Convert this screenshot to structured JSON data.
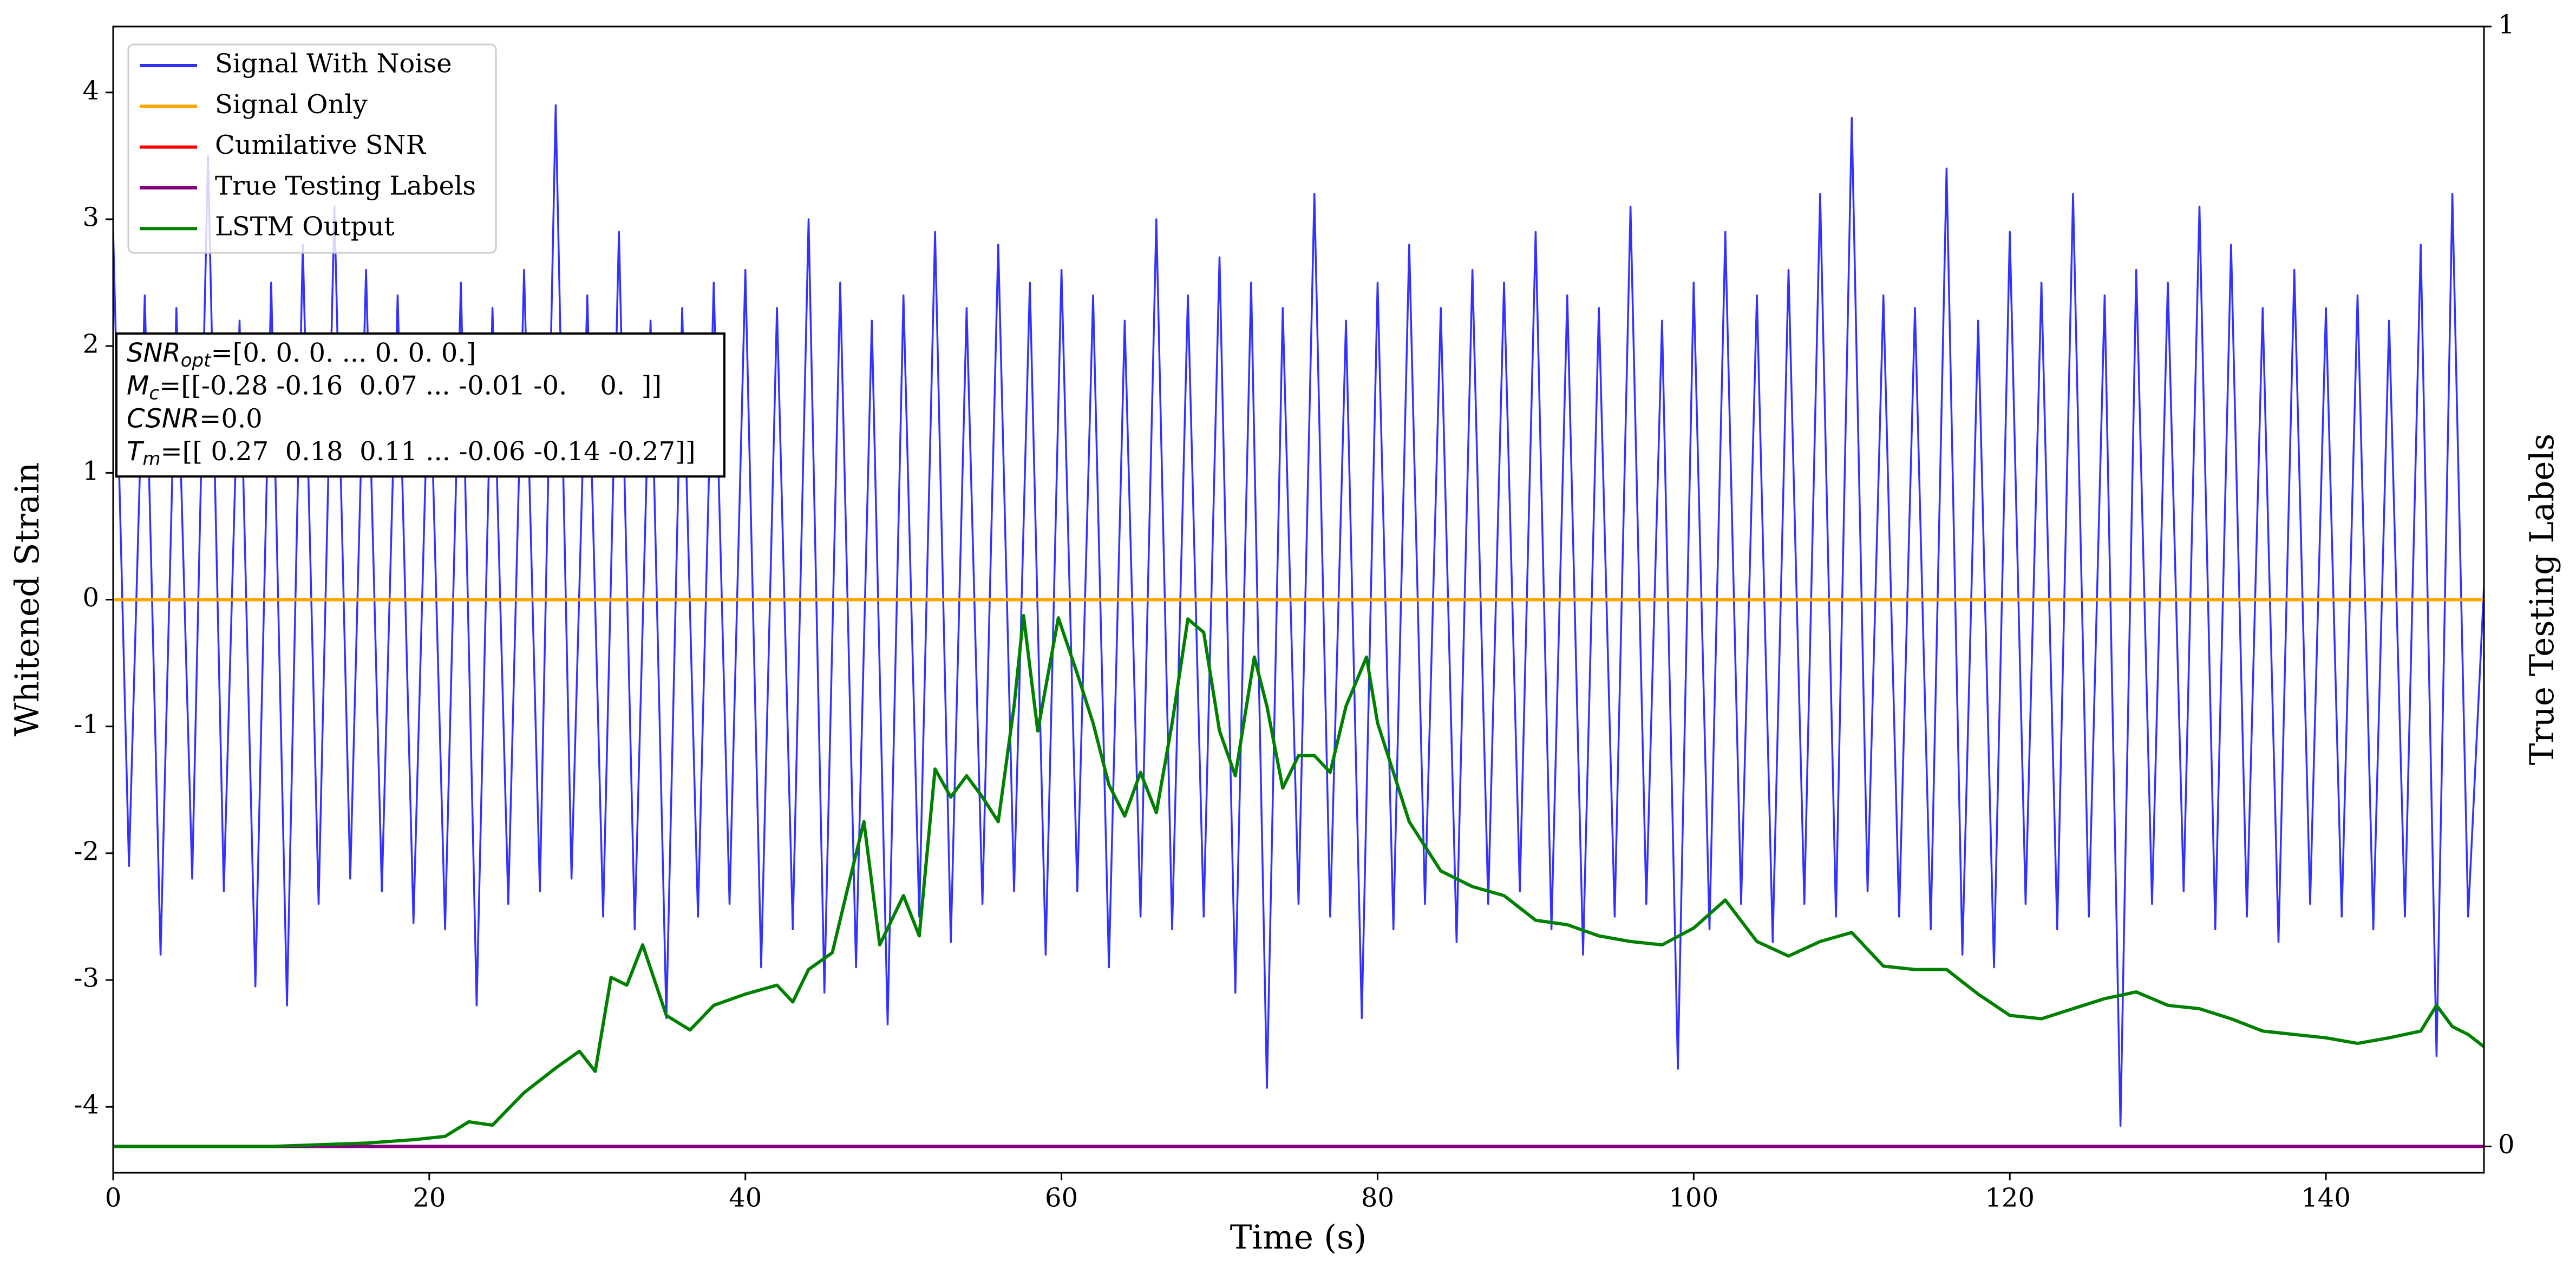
{
  "chart_data": {
    "type": "line",
    "xlabel": "Time (s)",
    "ylabel": "Whitened Strain",
    "y2label": "True Testing Labels",
    "xlim": [
      0,
      150
    ],
    "ylim": [
      -4.52,
      4.52
    ],
    "y2lim": [
      -0.0235,
      1
    ],
    "xticks": [
      0,
      20,
      40,
      60,
      80,
      100,
      120,
      140
    ],
    "yticks": [
      -4,
      -3,
      -2,
      -1,
      0,
      1,
      2,
      3,
      4
    ],
    "y2ticks": [
      0,
      1
    ],
    "legend": "upper left",
    "series": [
      {
        "name": "Signal With Noise",
        "color": "#3232ff",
        "x": [
          0,
          1,
          2,
          3,
          4,
          5,
          6,
          7,
          8,
          9,
          10,
          11,
          12,
          13,
          14,
          15,
          16,
          17,
          18,
          19,
          20,
          21,
          22,
          23,
          24,
          25,
          26,
          27,
          28,
          29,
          30,
          31,
          32,
          33,
          34,
          35,
          36,
          37,
          38,
          39,
          40,
          41,
          42,
          43,
          44,
          45,
          46,
          47,
          48,
          49,
          50,
          51,
          52,
          53,
          54,
          55,
          56,
          57,
          58,
          59,
          60,
          61,
          62,
          63,
          64,
          65,
          66,
          67,
          68,
          69,
          70,
          71,
          72,
          73,
          74,
          75,
          76,
          77,
          78,
          79,
          80,
          81,
          82,
          83,
          84,
          85,
          86,
          87,
          88,
          89,
          90,
          91,
          92,
          93,
          94,
          95,
          96,
          97,
          98,
          99,
          100,
          101,
          102,
          103,
          104,
          105,
          106,
          107,
          108,
          109,
          110,
          111,
          112,
          113,
          114,
          115,
          116,
          117,
          118,
          119,
          120,
          121,
          122,
          123,
          124,
          125,
          126,
          127,
          128,
          129,
          130,
          131,
          132,
          133,
          134,
          135,
          136,
          137,
          138,
          139,
          140,
          141,
          142,
          143,
          144,
          145,
          146,
          147,
          148,
          149,
          150
        ],
        "values": [
          2.9,
          -2.1,
          2.4,
          -2.8,
          2.3,
          -2.2,
          3.5,
          -2.3,
          2.2,
          -3.05,
          2.5,
          -3.2,
          2.8,
          -2.4,
          3.1,
          -2.2,
          2.6,
          -2.3,
          2.4,
          -2.55,
          2.1,
          -2.6,
          2.5,
          -3.2,
          2.3,
          -2.4,
          2.6,
          -2.3,
          3.9,
          -2.2,
          2.4,
          -2.5,
          2.9,
          -2.6,
          2.2,
          -3.3,
          2.3,
          -2.5,
          2.5,
          -2.4,
          2.6,
          -2.9,
          2.3,
          -2.6,
          3.0,
          -3.1,
          2.5,
          -2.9,
          2.2,
          -3.35,
          2.4,
          -2.5,
          2.9,
          -2.7,
          2.3,
          -2.4,
          2.8,
          -2.3,
          2.5,
          -2.8,
          2.6,
          -2.3,
          2.4,
          -2.9,
          2.2,
          -2.5,
          3.0,
          -2.6,
          2.4,
          -2.5,
          2.7,
          -3.1,
          2.5,
          -3.85,
          2.3,
          -2.4,
          3.2,
          -2.5,
          2.2,
          -3.3,
          2.5,
          -2.6,
          2.8,
          -2.4,
          2.3,
          -2.7,
          2.6,
          -2.4,
          2.5,
          -2.3,
          2.9,
          -2.6,
          2.4,
          -2.8,
          2.3,
          -2.5,
          3.1,
          -2.4,
          2.2,
          -3.7,
          2.5,
          -2.6,
          2.9,
          -2.4,
          2.4,
          -2.7,
          2.6,
          -2.4,
          3.2,
          -2.5,
          3.8,
          -2.3,
          2.4,
          -2.5,
          2.3,
          -2.6,
          3.4,
          -2.8,
          2.2,
          -2.9,
          2.9,
          -2.4,
          2.5,
          -2.6,
          3.2,
          -2.5,
          2.4,
          -4.15,
          2.6,
          -2.4,
          2.5,
          -2.3,
          3.1,
          -2.6,
          2.8,
          -2.5,
          2.3,
          -2.7,
          2.6,
          -2.4,
          2.3,
          -2.5,
          2.4,
          -2.6,
          2.2,
          -2.5,
          2.8,
          -3.6,
          3.2,
          -2.5,
          0.1
        ]
      },
      {
        "name": "Signal Only",
        "color": "#ffa500",
        "x": [
          0,
          150
        ],
        "values": [
          0,
          0
        ]
      },
      {
        "name": "Cumilative SNR",
        "color": "#ff0000",
        "axis": "y2",
        "x": [
          0,
          150
        ],
        "values": [
          0,
          0
        ]
      },
      {
        "name": "True Testing Labels",
        "color": "#800080",
        "axis": "y2",
        "x": [
          0,
          150
        ],
        "values": [
          0,
          0
        ]
      },
      {
        "name": "LSTM Output",
        "color": "#008000",
        "axis": "y2",
        "x": [
          0,
          10,
          16,
          19,
          21,
          22.5,
          24,
          26,
          28,
          29.5,
          30.5,
          31.5,
          32.5,
          33.5,
          35,
          36.5,
          38,
          40,
          42,
          43,
          44,
          45.5,
          46.5,
          47.5,
          48.5,
          50,
          51,
          52,
          53,
          54,
          55,
          56,
          57,
          57.6,
          58.5,
          59.8,
          61,
          62,
          63,
          64,
          65,
          66,
          67,
          68,
          69,
          70,
          71,
          72.2,
          73,
          74,
          75,
          76,
          77,
          78,
          79.3,
          80,
          82,
          84,
          86,
          88,
          90,
          92,
          94,
          96,
          98,
          100,
          102,
          104,
          106,
          108,
          110,
          112,
          114,
          116,
          118,
          120,
          122,
          124,
          126,
          128,
          130,
          132,
          134,
          136,
          138,
          140,
          142,
          144,
          146,
          147,
          148,
          149,
          150
        ],
        "values": [
          0,
          0,
          0.003,
          0.006,
          0.009,
          0.022,
          0.019,
          0.048,
          0.07,
          0.085,
          0.067,
          0.151,
          0.144,
          0.18,
          0.117,
          0.104,
          0.126,
          0.136,
          0.144,
          0.129,
          0.158,
          0.173,
          0.232,
          0.29,
          0.18,
          0.224,
          0.188,
          0.337,
          0.312,
          0.331,
          0.312,
          0.29,
          0.393,
          0.474,
          0.371,
          0.472,
          0.422,
          0.378,
          0.323,
          0.295,
          0.334,
          0.298,
          0.378,
          0.471,
          0.459,
          0.371,
          0.331,
          0.437,
          0.393,
          0.32,
          0.349,
          0.349,
          0.334,
          0.393,
          0.437,
          0.378,
          0.29,
          0.246,
          0.232,
          0.224,
          0.202,
          0.198,
          0.188,
          0.183,
          0.18,
          0.195,
          0.22,
          0.183,
          0.17,
          0.183,
          0.191,
          0.161,
          0.158,
          0.158,
          0.136,
          0.117,
          0.114,
          0.123,
          0.132,
          0.138,
          0.126,
          0.123,
          0.114,
          0.103,
          0.1,
          0.097,
          0.092,
          0.097,
          0.103,
          0.126,
          0.107,
          0.1,
          0.089
        ]
      }
    ],
    "annotation": [
      {
        "symbol": "SNR",
        "sub": "opt",
        "text": "=[0. 0. 0. ... 0. 0. 0.]"
      },
      {
        "symbol": "M",
        "sub": "c",
        "text": "=[[-0.28 -0.16  0.07 ... -0.01 -0.    0.  ]]"
      },
      {
        "symbol": "CSNR",
        "text": "=0.0"
      },
      {
        "symbol": "T",
        "sub": "m",
        "text": "=[[ 0.27  0.18  0.11 ... -0.06 -0.14 -0.27]]"
      }
    ]
  }
}
